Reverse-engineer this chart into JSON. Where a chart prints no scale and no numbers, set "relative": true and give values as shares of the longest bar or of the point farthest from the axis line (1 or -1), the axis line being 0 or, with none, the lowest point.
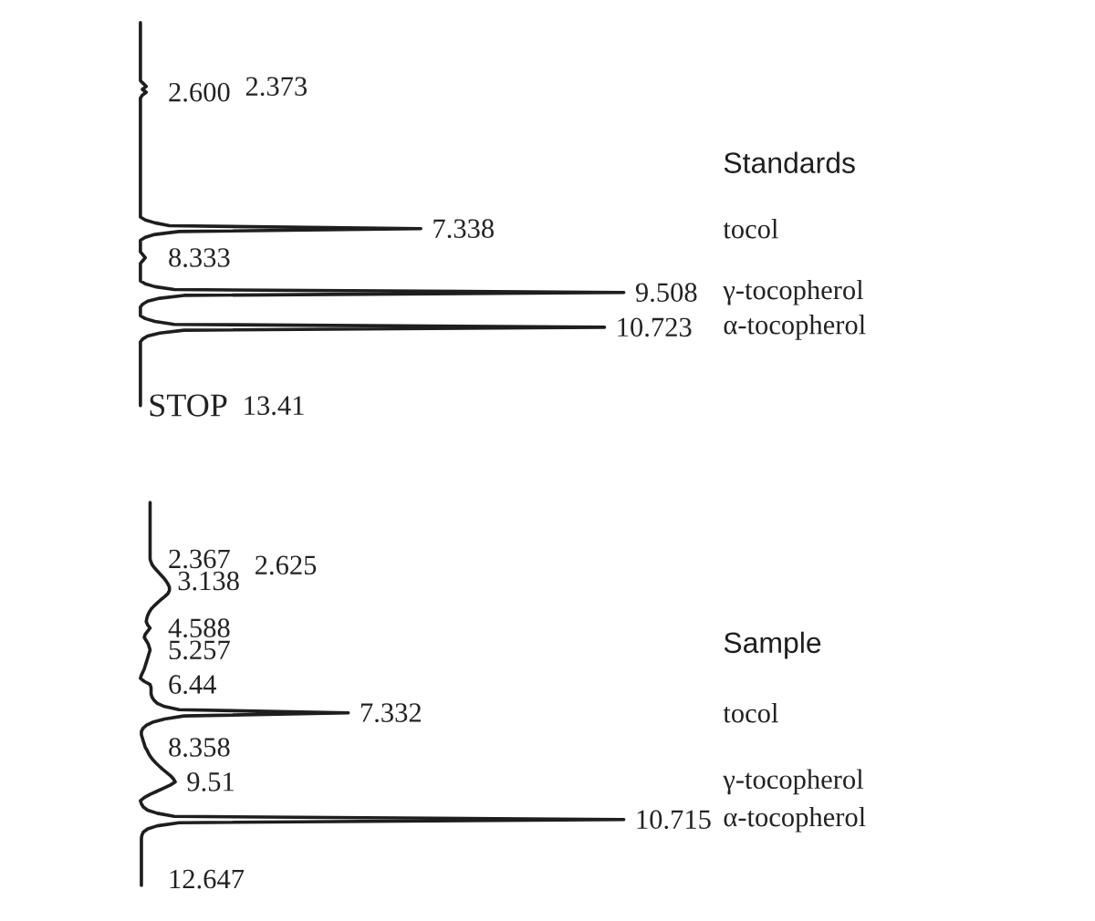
{
  "chart_data": [
    {
      "type": "line",
      "orientation": "horizontal",
      "relative": true,
      "categories": [
        null,
        null,
        null,
        null,
        null,
        null,
        null,
        null,
        null,
        null,
        null,
        null,
        null,
        null,
        null,
        null,
        null,
        null,
        null,
        null,
        null,
        null,
        "2.373",
        null,
        "2.600",
        null,
        null,
        null,
        null,
        null,
        null,
        null,
        null,
        null,
        null,
        null,
        null,
        null,
        null,
        null,
        null,
        null,
        null,
        null,
        null,
        null,
        null,
        null,
        null,
        null,
        null,
        null,
        null,
        null,
        null,
        null,
        null,
        null,
        null,
        null,
        null,
        null,
        null,
        null,
        null,
        null,
        null,
        null,
        null,
        null,
        null,
        "7.338",
        null,
        null,
        null,
        null,
        null,
        null,
        null,
        null,
        null,
        "8.333",
        null,
        null,
        null,
        null,
        null,
        null,
        null,
        null,
        null,
        null,
        null,
        "9.508",
        null,
        null,
        null,
        null,
        null,
        null,
        null,
        null,
        null,
        null,
        null,
        "10.723",
        null,
        null,
        null,
        null,
        null,
        null,
        null,
        null,
        null,
        null,
        null,
        null,
        null,
        null,
        null,
        null,
        null,
        null,
        null,
        null,
        null,
        null,
        null,
        null,
        null,
        null,
        "13.41"
      ],
      "y2_categories": [
        null,
        null,
        null,
        null,
        null,
        null,
        null,
        null,
        null,
        null,
        null,
        null,
        null,
        null,
        null,
        null,
        null,
        null,
        null,
        null,
        null,
        null,
        null,
        null,
        null,
        null,
        null,
        null,
        null,
        null,
        null,
        null,
        null,
        null,
        null,
        null,
        null,
        null,
        null,
        null,
        null,
        null,
        null,
        null,
        null,
        null,
        null,
        null,
        null,
        null,
        null,
        null,
        null,
        null,
        null,
        null,
        null,
        null,
        null,
        null,
        null,
        null,
        null,
        null,
        null,
        null,
        null,
        null,
        null,
        null,
        null,
        "tocol",
        null,
        null,
        null,
        null,
        null,
        null,
        null,
        null,
        null,
        null,
        null,
        null,
        null,
        null,
        null,
        null,
        null,
        null,
        null,
        null,
        null,
        "γ-tocopherol",
        null,
        null,
        null,
        null,
        null,
        null,
        null,
        null,
        null,
        null,
        null,
        "α-tocopherol",
        null,
        null,
        null,
        null,
        null,
        null,
        null,
        null,
        null,
        null,
        null,
        null,
        null,
        null,
        null,
        null,
        null,
        null,
        null,
        null,
        null,
        null,
        null,
        null,
        null,
        null,
        null
      ],
      "series": [
        {
          "name": "Standards",
          "color": "#1e1e1e",
          "values": [
            0,
            0,
            0,
            0,
            0,
            0,
            0,
            0,
            0,
            0,
            0,
            0,
            0,
            0,
            0,
            0,
            0,
            0,
            0,
            0,
            0,
            0.006,
            0.012,
            0.004,
            0.012,
            0.004,
            0,
            0,
            0,
            0,
            0,
            0,
            0,
            0,
            0,
            0,
            0,
            0,
            0,
            0,
            0,
            0,
            0,
            0,
            0,
            0,
            0,
            0,
            0,
            0,
            0,
            0,
            0,
            0,
            0,
            0,
            0,
            0,
            0,
            0,
            0,
            0,
            0,
            0,
            0,
            0,
            0,
            0,
            0.01,
            0.03,
            0.06,
            0.58,
            0.08,
            0.03,
            0.01,
            0,
            0,
            0,
            0,
            0,
            0.005,
            0.01,
            0.005,
            0,
            0,
            0,
            0,
            0,
            0,
            0,
            0.01,
            0.03,
            0.07,
            1.0,
            0.09,
            0.04,
            0.015,
            0.005,
            0,
            0,
            0,
            0,
            0.01,
            0.03,
            0.07,
            0.96,
            0.09,
            0.04,
            0.015,
            0.005,
            0,
            0,
            0,
            0,
            0,
            0,
            0,
            0,
            0,
            0,
            0,
            0,
            0,
            0,
            0,
            0,
            0,
            0,
            0,
            0,
            0,
            0,
            0
          ]
        }
      ],
      "annotations": [
        "STOP"
      ]
    },
    {
      "type": "line",
      "orientation": "horizontal",
      "relative": true,
      "categories": [
        null,
        null,
        null,
        null,
        null,
        null,
        null,
        null,
        null,
        null,
        null,
        null,
        null,
        null,
        null,
        null,
        null,
        null,
        "2.367",
        null,
        "2.625",
        null,
        null,
        null,
        null,
        "3.138",
        null,
        null,
        null,
        null,
        null,
        null,
        null,
        null,
        null,
        null,
        null,
        null,
        null,
        null,
        "4.588",
        null,
        null,
        null,
        null,
        null,
        null,
        "5.257",
        null,
        null,
        null,
        null,
        null,
        null,
        null,
        null,
        null,
        null,
        "6.44",
        null,
        null,
        null,
        null,
        null,
        null,
        null,
        null,
        "7.332",
        null,
        null,
        null,
        null,
        null,
        null,
        null,
        null,
        null,
        null,
        "8.358",
        null,
        null,
        null,
        null,
        null,
        null,
        null,
        null,
        null,
        null,
        "9.51",
        null,
        null,
        null,
        null,
        null,
        null,
        null,
        null,
        null,
        null,
        null,
        "10.715",
        null,
        null,
        null,
        null,
        null,
        null,
        null,
        null,
        null,
        null,
        null,
        null,
        null,
        null,
        null,
        null,
        null,
        null,
        "12.647",
        null,
        null
      ],
      "y2_categories": [
        null,
        null,
        null,
        null,
        null,
        null,
        null,
        null,
        null,
        null,
        null,
        null,
        null,
        null,
        null,
        null,
        null,
        null,
        null,
        null,
        null,
        null,
        null,
        null,
        null,
        null,
        null,
        null,
        null,
        null,
        null,
        null,
        null,
        null,
        null,
        null,
        null,
        null,
        null,
        null,
        null,
        null,
        null,
        null,
        null,
        null,
        null,
        null,
        null,
        null,
        null,
        null,
        null,
        null,
        null,
        null,
        null,
        null,
        null,
        null,
        null,
        null,
        null,
        null,
        null,
        null,
        null,
        "tocol",
        null,
        null,
        null,
        null,
        null,
        null,
        null,
        null,
        null,
        null,
        null,
        null,
        null,
        null,
        null,
        null,
        null,
        null,
        null,
        null,
        null,
        "γ-tocopherol",
        null,
        null,
        null,
        null,
        null,
        null,
        null,
        null,
        null,
        null,
        null,
        "α-tocopherol",
        null,
        null,
        null,
        null,
        null,
        null,
        null,
        null,
        null,
        null,
        null,
        null,
        null,
        null,
        null,
        null,
        null,
        null,
        null,
        null,
        null
      ],
      "series": [
        {
          "name": "Sample",
          "color": "#1e1e1e",
          "values": [
            0.02,
            0.02,
            0.02,
            0.02,
            0.02,
            0.02,
            0.02,
            0.02,
            0.02,
            0.02,
            0.02,
            0.02,
            0.02,
            0.02,
            0.02,
            0.02,
            0.02,
            0.02,
            0.02,
            0.022,
            0.025,
            0.03,
            0.036,
            0.042,
            0.048,
            0.053,
            0.057,
            0.06,
            0.06,
            0.057,
            0.05,
            0.042,
            0.035,
            0.028,
            0.022,
            0.018,
            0.015,
            0.013,
            0.012,
            0.015,
            0.02,
            0.015,
            0.01,
            0.008,
            0.012,
            0.016,
            0.018,
            0.02,
            0.018,
            0.016,
            0.014,
            0.012,
            0.01,
            0.008,
            0.005,
            0.002,
            0,
            0.008,
            0.02,
            0.022,
            0.022,
            0.022,
            0.024,
            0.028,
            0.035,
            0.05,
            0.08,
            0.43,
            0.09,
            0.05,
            0.025,
            0.012,
            0.005,
            0.002,
            0.002,
            0.004,
            0.006,
            0.008,
            0.01,
            0.014,
            0.017,
            0.021,
            0.026,
            0.032,
            0.039,
            0.046,
            0.054,
            0.062,
            0.068,
            0.072,
            0.062,
            0.048,
            0.034,
            0.02,
            0.008,
            0,
            0.002,
            0.006,
            0.015,
            0.035,
            0.07,
            1.0,
            0.08,
            0.035,
            0.015,
            0.006,
            0.003,
            0.002,
            0.002,
            0.002,
            0.002,
            0.002,
            0.002,
            0.002,
            0.002,
            0.002,
            0.002,
            0.002,
            0.002,
            0.002,
            0.002,
            0.002,
            0.002
          ]
        }
      ]
    }
  ]
}
